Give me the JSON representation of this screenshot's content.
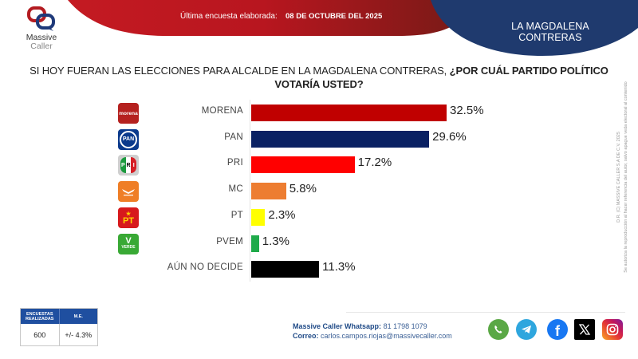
{
  "header": {
    "survey_label": "Última encuesta elaborada:",
    "survey_date": "08 DE OCTUBRE DEL 2025",
    "location": "LA MAGDALENA CONTRERAS"
  },
  "logo": {
    "line1": "Massive",
    "line2": "Caller"
  },
  "question": {
    "regular": "SI HOY FUERAN LAS ELECCIONES PARA ALCALDE EN LA MAGDALENA CONTRERAS, ",
    "bold": "¿POR CUÁL PARTIDO POLÍTICO VOTARÍA USTED?"
  },
  "chart_data": {
    "type": "bar",
    "orientation": "horizontal",
    "title": "SI HOY FUERAN LAS ELECCIONES PARA ALCALDE EN LA MAGDALENA CONTRERAS, ¿POR CUÁL PARTIDO POLÍTICO VOTARÍA USTED?",
    "xlabel": "",
    "ylabel": "",
    "unit": "%",
    "xlim": [
      0,
      35
    ],
    "grid": false,
    "categories": [
      "MORENA",
      "PAN",
      "PRI",
      "MC",
      "PT",
      "PVEM",
      "AÚN NO DECIDE"
    ],
    "values": [
      32.5,
      29.6,
      17.2,
      5.8,
      2.3,
      1.3,
      11.3
    ],
    "value_labels": [
      "32.5%",
      "29.6%",
      "17.2%",
      "5.8%",
      "2.3%",
      "1.3%",
      "11.3%"
    ],
    "colors": [
      "#c00000",
      "#0a2163",
      "#ff0000",
      "#ed7d31",
      "#ffff00",
      "#1faa4a",
      "#000000"
    ],
    "party_logos": [
      {
        "icon": "morena-logo-icon",
        "text": "morena",
        "bg": "#b5211f"
      },
      {
        "icon": "pan-logo-icon",
        "text": "PAN",
        "bg": "#0b3a8c"
      },
      {
        "icon": "pri-logo-icon",
        "text": "PRI",
        "bg": "#cfcfcf"
      },
      {
        "icon": "mc-logo-icon",
        "text": "",
        "bg": "#ef7e26"
      },
      {
        "icon": "pt-logo-icon",
        "text": "PT",
        "bg": "#d7191c"
      },
      {
        "icon": "pvem-logo-icon",
        "text": "VERDE",
        "bg": "#39a935"
      },
      null
    ]
  },
  "copyright": {
    "line1": "D.R. (C) MASSIVE CALLER S.A DE C.V. 2025",
    "line2": "Se autoriza la reproducción al hacer referencia del autor, salvo apague veda electoral al contenido"
  },
  "stats": {
    "col1_header": "ENCUESTAS REALIZADAS",
    "col2_header": "M.E.",
    "col1_value": "600",
    "col2_value": "+/- 4.3%"
  },
  "contact": {
    "whatsapp_label": "Massive Caller Whatsapp:",
    "whatsapp_number": "81 1798 1079",
    "email_label": "Correo:",
    "email": "carlos.campos.riojas@massivecaller.com"
  },
  "social": [
    "whatsapp-icon",
    "telegram-icon",
    "facebook-icon",
    "x-icon",
    "instagram-icon"
  ],
  "colors": {
    "brand_red": "#b8161f",
    "brand_blue": "#1f3a6e",
    "table_header": "#1f4fa0"
  }
}
